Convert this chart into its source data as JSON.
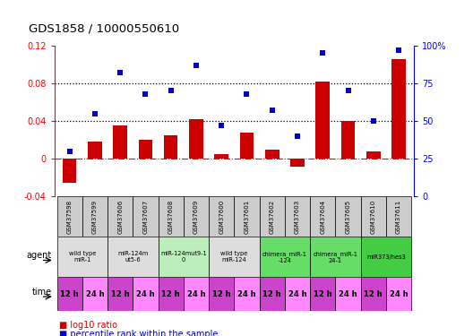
{
  "title": "GDS1858 / 10000550610",
  "samples": [
    "GSM37598",
    "GSM37599",
    "GSM37606",
    "GSM37607",
    "GSM37608",
    "GSM37609",
    "GSM37600",
    "GSM37601",
    "GSM37602",
    "GSM37603",
    "GSM37604",
    "GSM37605",
    "GSM37610",
    "GSM37611"
  ],
  "log10_ratio": [
    -0.025,
    0.018,
    0.035,
    0.02,
    0.025,
    0.042,
    0.005,
    0.028,
    0.01,
    -0.008,
    0.082,
    0.04,
    0.008,
    0.105
  ],
  "percentile_rank": [
    30,
    55,
    82,
    68,
    70,
    87,
    47,
    68,
    57,
    40,
    95,
    70,
    50,
    97
  ],
  "bar_color": "#cc0000",
  "dot_color": "#0000cc",
  "ylim_left": [
    -0.04,
    0.12
  ],
  "ylim_right": [
    0,
    100
  ],
  "yticks_left": [
    -0.04,
    0.0,
    0.04,
    0.08,
    0.12
  ],
  "yticks_right": [
    0,
    25,
    50,
    75,
    100
  ],
  "ytick_labels_left": [
    "-0.04",
    "0",
    "0.04",
    "0.08",
    "0.12"
  ],
  "ytick_labels_right": [
    "0",
    "25",
    "50",
    "75",
    "100%"
  ],
  "hlines": [
    0.04,
    0.08
  ],
  "agent_groups": [
    {
      "label": "wild type\nmiR-1",
      "cols": [
        0,
        1
      ],
      "color": "#dddddd"
    },
    {
      "label": "miR-124m\nut5-6",
      "cols": [
        2,
        3
      ],
      "color": "#dddddd"
    },
    {
      "label": "miR-124mut9-1\n0",
      "cols": [
        4,
        5
      ],
      "color": "#bbeebb"
    },
    {
      "label": "wild type\nmiR-124",
      "cols": [
        6,
        7
      ],
      "color": "#dddddd"
    },
    {
      "label": "chimera_miR-1\n-124",
      "cols": [
        8,
        9
      ],
      "color": "#66dd66"
    },
    {
      "label": "chimera_miR-1\n24-1",
      "cols": [
        10,
        11
      ],
      "color": "#66dd66"
    },
    {
      "label": "miR373/hes3",
      "cols": [
        12,
        13
      ],
      "color": "#44cc44"
    }
  ],
  "time_colors_alt": [
    "#cc44cc",
    "#ff88ff"
  ],
  "legend_bar_label": "log10 ratio",
  "legend_dot_label": "percentile rank within the sample"
}
